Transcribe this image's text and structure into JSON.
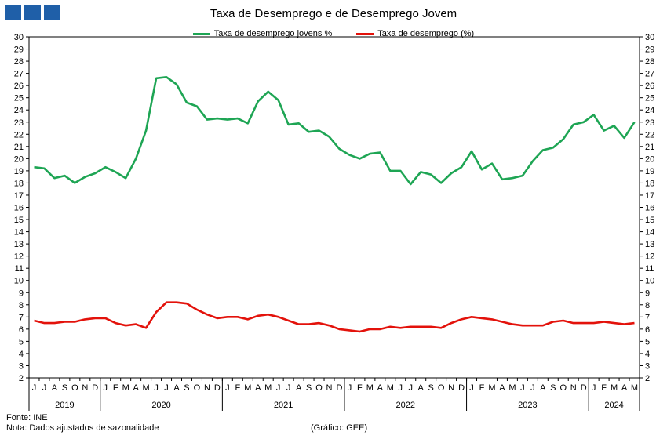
{
  "logo": {
    "name": "brand-logo",
    "color": "#1f5fa8"
  },
  "chart_data": {
    "type": "line",
    "title": "Taxa de Desemprego e de Desemprego Jovem",
    "ylim": [
      2,
      30
    ],
    "y_ticks": [
      2,
      3,
      4,
      5,
      6,
      7,
      8,
      9,
      10,
      11,
      12,
      13,
      14,
      15,
      16,
      17,
      18,
      19,
      20,
      21,
      22,
      23,
      24,
      25,
      26,
      27,
      28,
      29,
      30
    ],
    "grid": false,
    "legend_position": "top-center",
    "x": [
      "2019-06",
      "2019-07",
      "2019-08",
      "2019-09",
      "2019-10",
      "2019-11",
      "2019-12",
      "2020-01",
      "2020-02",
      "2020-03",
      "2020-04",
      "2020-05",
      "2020-06",
      "2020-07",
      "2020-08",
      "2020-09",
      "2020-10",
      "2020-11",
      "2020-12",
      "2021-01",
      "2021-02",
      "2021-03",
      "2021-04",
      "2021-05",
      "2021-06",
      "2021-07",
      "2021-08",
      "2021-09",
      "2021-10",
      "2021-11",
      "2021-12",
      "2022-01",
      "2022-02",
      "2022-03",
      "2022-04",
      "2022-05",
      "2022-06",
      "2022-07",
      "2022-08",
      "2022-09",
      "2022-10",
      "2022-11",
      "2022-12",
      "2023-01",
      "2023-02",
      "2023-03",
      "2023-04",
      "2023-05",
      "2023-06",
      "2023-07",
      "2023-08",
      "2023-09",
      "2023-10",
      "2023-11",
      "2023-12",
      "2024-01",
      "2024-02",
      "2024-03",
      "2024-04",
      "2024-05"
    ],
    "month_labels": [
      "J",
      "J",
      "A",
      "S",
      "O",
      "N",
      "D",
      "J",
      "F",
      "M",
      "A",
      "M",
      "J",
      "J",
      "A",
      "S",
      "O",
      "N",
      "D",
      "J",
      "F",
      "M",
      "A",
      "M",
      "J",
      "J",
      "A",
      "S",
      "O",
      "N",
      "D",
      "J",
      "F",
      "M",
      "A",
      "M",
      "J",
      "J",
      "A",
      "S",
      "O",
      "N",
      "D",
      "J",
      "F",
      "M",
      "A",
      "M",
      "J",
      "J",
      "A",
      "S",
      "O",
      "N",
      "D",
      "J",
      "F",
      "M",
      "A",
      "M"
    ],
    "year_groups": [
      {
        "label": "2019",
        "start": 0,
        "end": 6
      },
      {
        "label": "2020",
        "start": 7,
        "end": 18
      },
      {
        "label": "2021",
        "start": 19,
        "end": 30
      },
      {
        "label": "2022",
        "start": 31,
        "end": 42
      },
      {
        "label": "2023",
        "start": 43,
        "end": 54
      },
      {
        "label": "2024",
        "start": 55,
        "end": 59
      }
    ],
    "series": [
      {
        "name": "Taxa de desemprego jovens %",
        "color": "#1ea554",
        "values": [
          19.3,
          19.2,
          18.4,
          18.6,
          18.0,
          18.5,
          18.8,
          19.3,
          18.9,
          18.4,
          20.0,
          22.3,
          26.6,
          26.7,
          26.1,
          24.6,
          24.3,
          23.2,
          23.3,
          23.2,
          23.3,
          22.9,
          24.7,
          25.5,
          24.8,
          22.8,
          22.9,
          22.2,
          22.3,
          21.8,
          20.8,
          20.3,
          20.0,
          20.4,
          20.5,
          19.0,
          19.0,
          17.9,
          18.9,
          18.7,
          18.0,
          18.8,
          19.3,
          20.6,
          19.1,
          19.6,
          18.3,
          18.4,
          18.6,
          19.8,
          20.7,
          20.9,
          21.6,
          22.8,
          23.0,
          23.6,
          22.3,
          22.7,
          21.7,
          23.0
        ]
      },
      {
        "name": "Taxa de desemprego (%)",
        "color": "#e3120b",
        "values": [
          6.7,
          6.5,
          6.5,
          6.6,
          6.6,
          6.8,
          6.9,
          6.9,
          6.5,
          6.3,
          6.4,
          6.1,
          7.4,
          8.2,
          8.2,
          8.1,
          7.6,
          7.2,
          6.9,
          7.0,
          7.0,
          6.8,
          7.1,
          7.2,
          7.0,
          6.7,
          6.4,
          6.4,
          6.5,
          6.3,
          6.0,
          5.9,
          5.8,
          6.0,
          6.0,
          6.2,
          6.1,
          6.2,
          6.2,
          6.2,
          6.1,
          6.5,
          6.8,
          7.0,
          6.9,
          6.8,
          6.6,
          6.4,
          6.3,
          6.3,
          6.3,
          6.6,
          6.7,
          6.5,
          6.5,
          6.5,
          6.6,
          6.5,
          6.4,
          6.5
        ]
      }
    ]
  },
  "footer": {
    "source": "Fonte: INE",
    "note": "Nota:  Dados ajustados  de sazonalidade",
    "credit": "(Gráfico: GEE)"
  }
}
